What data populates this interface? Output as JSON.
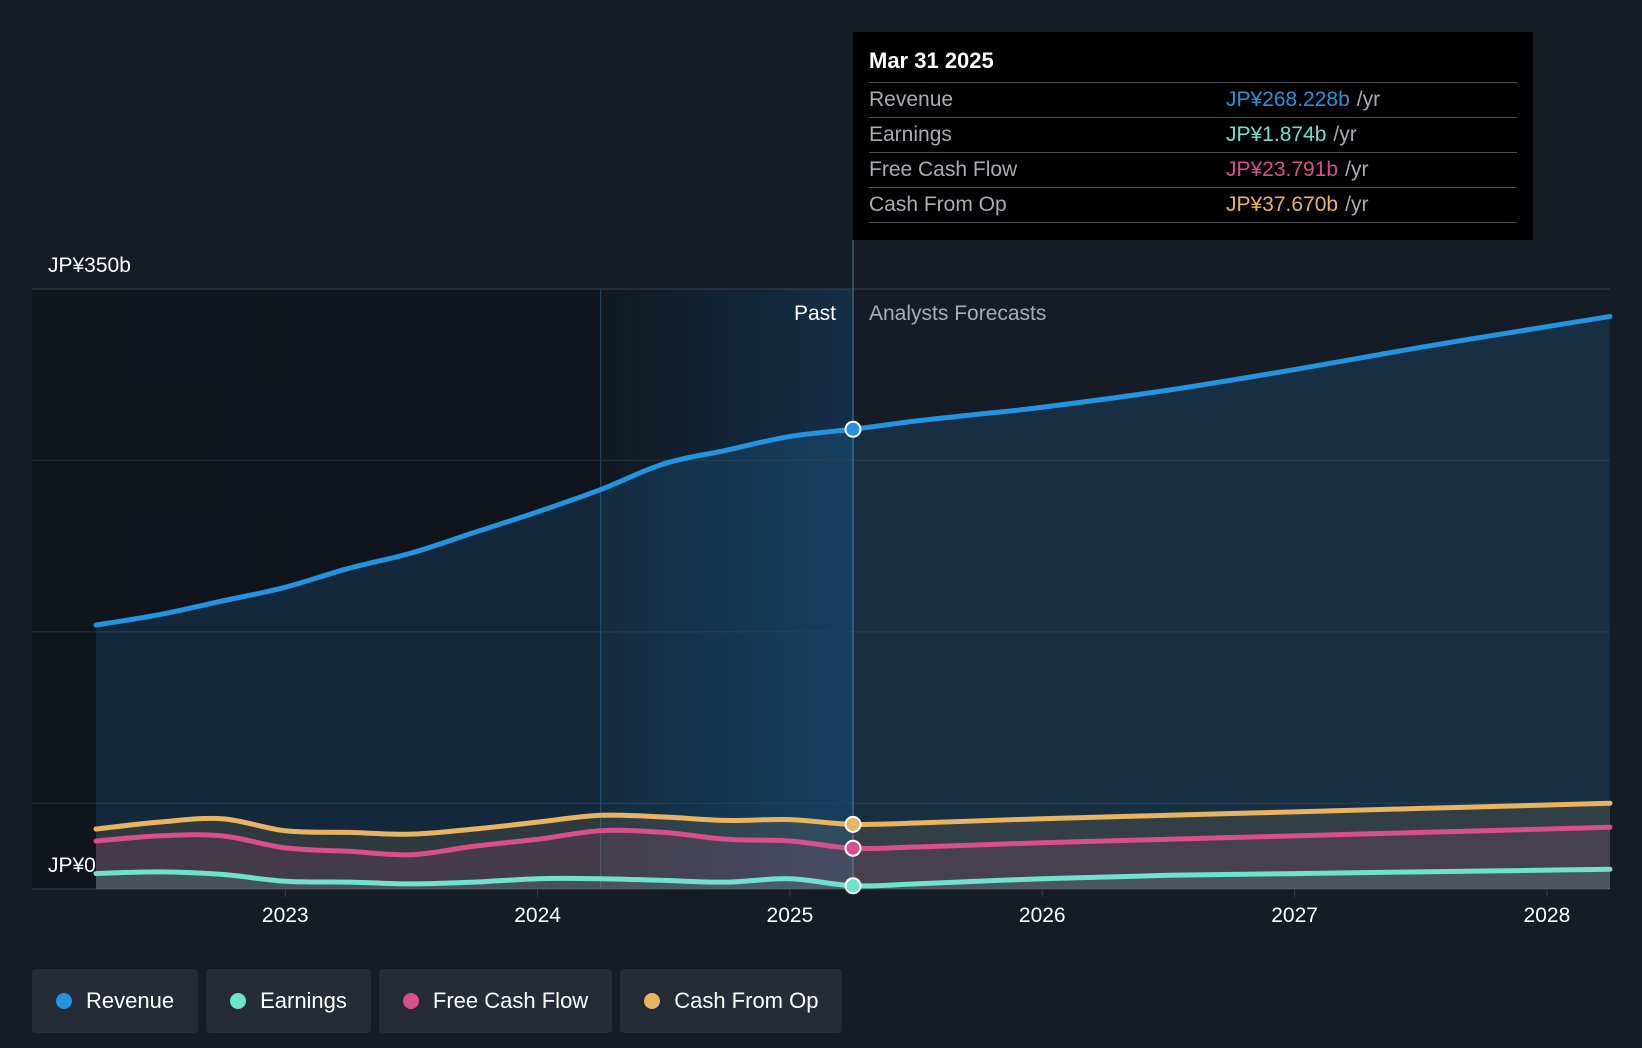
{
  "chart_data": {
    "type": "area",
    "y_axis_labels": {
      "top": "JP¥350b",
      "bottom": "JP¥0"
    },
    "ylim": [
      0,
      350
    ],
    "xlim": [
      2022.25,
      2028.25
    ],
    "x_ticks": [
      {
        "value": 2023,
        "label": "2023"
      },
      {
        "value": 2024,
        "label": "2024"
      },
      {
        "value": 2025,
        "label": "2025"
      },
      {
        "value": 2026,
        "label": "2026"
      },
      {
        "value": 2027,
        "label": "2027"
      },
      {
        "value": 2028,
        "label": "2028"
      }
    ],
    "divider_value": 2025.25,
    "highlight_start_value": 2024.25,
    "past_label": "Past",
    "forecast_label": "Analysts Forecasts",
    "series": [
      {
        "name": "Revenue",
        "color": "#2394df",
        "fill": true,
        "points": [
          [
            2022.25,
            154
          ],
          [
            2022.5,
            160
          ],
          [
            2022.75,
            168
          ],
          [
            2023,
            176
          ],
          [
            2023.25,
            187
          ],
          [
            2023.5,
            196
          ],
          [
            2023.75,
            208
          ],
          [
            2024,
            220
          ],
          [
            2024.25,
            233
          ],
          [
            2024.5,
            248
          ],
          [
            2024.75,
            256
          ],
          [
            2025,
            264
          ],
          [
            2025.25,
            268.2
          ],
          [
            2025.5,
            273
          ],
          [
            2025.75,
            277
          ],
          [
            2026,
            281
          ],
          [
            2026.5,
            291
          ],
          [
            2027,
            303
          ],
          [
            2027.5,
            316
          ],
          [
            2028,
            328
          ],
          [
            2028.25,
            334
          ]
        ]
      },
      {
        "name": "Cash From Op",
        "color": "#e9b461",
        "fill": true,
        "points": [
          [
            2022.25,
            35
          ],
          [
            2022.5,
            39
          ],
          [
            2022.75,
            41
          ],
          [
            2023,
            34
          ],
          [
            2023.25,
            33
          ],
          [
            2023.5,
            32
          ],
          [
            2023.75,
            35
          ],
          [
            2024,
            39
          ],
          [
            2024.25,
            43
          ],
          [
            2024.5,
            42
          ],
          [
            2024.75,
            40
          ],
          [
            2025,
            40.5
          ],
          [
            2025.25,
            37.7
          ],
          [
            2025.5,
            38.5
          ],
          [
            2026,
            41
          ],
          [
            2026.5,
            43
          ],
          [
            2027,
            45
          ],
          [
            2027.5,
            47
          ],
          [
            2028,
            49
          ],
          [
            2028.25,
            50
          ]
        ]
      },
      {
        "name": "Free Cash Flow",
        "color": "#d84f8c",
        "fill": true,
        "points": [
          [
            2022.25,
            28
          ],
          [
            2022.5,
            31
          ],
          [
            2022.75,
            31
          ],
          [
            2023,
            24
          ],
          [
            2023.25,
            22
          ],
          [
            2023.5,
            20
          ],
          [
            2023.75,
            25
          ],
          [
            2024,
            29
          ],
          [
            2024.25,
            34
          ],
          [
            2024.5,
            33
          ],
          [
            2024.75,
            29
          ],
          [
            2025,
            28
          ],
          [
            2025.25,
            23.8
          ],
          [
            2025.5,
            24.5
          ],
          [
            2026,
            27
          ],
          [
            2026.5,
            29
          ],
          [
            2027,
            31
          ],
          [
            2027.5,
            33
          ],
          [
            2028,
            35
          ],
          [
            2028.25,
            36
          ]
        ]
      },
      {
        "name": "Earnings",
        "color": "#6ee2cd",
        "fill": true,
        "points": [
          [
            2022.25,
            9
          ],
          [
            2022.5,
            10
          ],
          [
            2022.75,
            8.5
          ],
          [
            2023,
            4.5
          ],
          [
            2023.25,
            4
          ],
          [
            2023.5,
            3
          ],
          [
            2023.75,
            4
          ],
          [
            2024,
            6
          ],
          [
            2024.25,
            6
          ],
          [
            2024.5,
            5
          ],
          [
            2024.75,
            4
          ],
          [
            2025,
            6
          ],
          [
            2025.25,
            1.9
          ],
          [
            2025.5,
            3
          ],
          [
            2026,
            6
          ],
          [
            2026.5,
            8
          ],
          [
            2027,
            9
          ],
          [
            2027.5,
            10
          ],
          [
            2028,
            11
          ],
          [
            2028.25,
            11.5
          ]
        ]
      }
    ]
  },
  "tooltip": {
    "date": "Mar 31 2025",
    "unit": "/yr",
    "rows": [
      {
        "label": "Revenue",
        "value": "JP¥268.228b",
        "color": "#2394df"
      },
      {
        "label": "Earnings",
        "value": "JP¥1.874b",
        "color": "#6ee2cd"
      },
      {
        "label": "Free Cash Flow",
        "value": "JP¥23.791b",
        "color": "#d84f8c"
      },
      {
        "label": "Cash From Op",
        "value": "JP¥37.670b",
        "color": "#e9b461"
      }
    ]
  },
  "legend": [
    {
      "label": "Revenue",
      "color": "#2394df"
    },
    {
      "label": "Earnings",
      "color": "#6ee2cd"
    },
    {
      "label": "Free Cash Flow",
      "color": "#d84f8c"
    },
    {
      "label": "Cash From Op",
      "color": "#e9b461"
    }
  ]
}
